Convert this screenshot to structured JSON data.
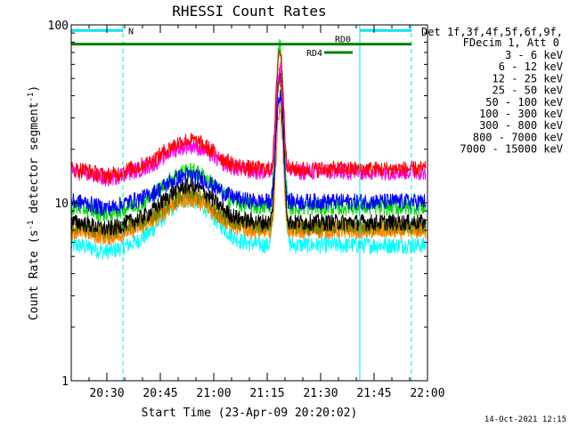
{
  "chart_data": {
    "type": "line",
    "title": "RHESSI Count Rates",
    "xlabel": "Start Time (23-Apr-09 20:20:02)",
    "ylabel_main": "Count Rate (s",
    "ylabel_sup": "-1",
    "ylabel_mid": " detector segment",
    "ylabel_end": ")",
    "x_range_minutes": [
      0,
      100
    ],
    "y_scale": "log",
    "ylim": [
      1,
      100
    ],
    "x_ticks": [
      {
        "label": "20:30",
        "minutes": 10
      },
      {
        "label": "20:45",
        "minutes": 25
      },
      {
        "label": "21:00",
        "minutes": 40
      },
      {
        "label": "21:15",
        "minutes": 55
      },
      {
        "label": "21:30",
        "minutes": 70
      },
      {
        "label": "21:45",
        "minutes": 85
      },
      {
        "label": "22:00",
        "minutes": 100
      }
    ],
    "y_ticks": [
      {
        "label": "1",
        "value": 1
      },
      {
        "label": "10",
        "value": 10
      },
      {
        "label": "100",
        "value": 100
      }
    ],
    "legend_header_1": "Det 1f,3f,4f,5f,6f,9f,",
    "legend_header_2": "FDecim 1, Att 0",
    "legend_placement": "right, outside plot",
    "series": [
      {
        "name": "3 - 6 keV",
        "color": "#000000",
        "base": 7.8,
        "peak": 48,
        "bump": 1.6
      },
      {
        "name": "6 - 12 keV",
        "color": "#ff00ff",
        "base": 15.0,
        "peak": 42,
        "bump": 1.4
      },
      {
        "name": "12 - 25 keV",
        "color": "#00dd00",
        "base": 9.5,
        "peak": 68,
        "bump": 1.6
      },
      {
        "name": "25 - 50 keV",
        "color": "#00ffff",
        "base": 5.8,
        "peak": 72,
        "bump": 1.8
      },
      {
        "name": "50 - 100 keV",
        "color": "#ffb000",
        "base": 7.2,
        "peak": 44,
        "bump": 1.5
      },
      {
        "name": "100 - 300 keV",
        "color": "#ff0000",
        "base": 15.5,
        "peak": 56,
        "bump": 1.45
      },
      {
        "name": "300 - 800 keV",
        "color": "#0000ff",
        "base": 10.2,
        "peak": 30,
        "bump": 1.4
      },
      {
        "name": "800 - 7000 keV",
        "color": "#ff7f00",
        "base": 7.0,
        "peak": 26,
        "bump": 1.5
      },
      {
        "name": "7000 - 15000 keV",
        "color": "#808000",
        "base": 7.4,
        "peak": 40,
        "bump": 1.5
      }
    ],
    "attenuator_bars": [
      {
        "label": "N",
        "color": "#00e5ee",
        "level": 93,
        "x_start": 0,
        "x_end": 14.5
      },
      {
        "label": "",
        "color": "#00e5ee",
        "level": 93,
        "x_start": 81,
        "x_end": 95.5
      },
      {
        "label": "RD0",
        "color": "#008000",
        "level": 78,
        "x_start": 0,
        "x_end": 95.5
      },
      {
        "label": "RD4",
        "color": "#008000",
        "level": 70,
        "x_start": 71,
        "x_end": 79
      }
    ],
    "vertical_markers": [
      {
        "minutes": 0,
        "style": "solid",
        "color": "#00e5ee"
      },
      {
        "minutes": 14.5,
        "style": "dashed",
        "color": "#00e5ee"
      },
      {
        "minutes": 81,
        "style": "solid",
        "color": "#00e5ee"
      },
      {
        "minutes": 95.5,
        "style": "dashed",
        "color": "#00e5ee"
      }
    ],
    "peak_minutes": 58.5,
    "bump_minutes": 33
  },
  "timestamp": "14-Oct-2021 12:15"
}
